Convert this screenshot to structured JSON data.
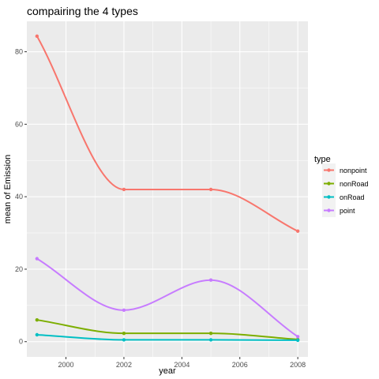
{
  "chart_data": {
    "type": "line",
    "title": "compairing the 4 types",
    "xlabel": "year",
    "ylabel": "mean of Emission",
    "x": [
      1999,
      2002,
      2005,
      2008
    ],
    "xlim": [
      1998.65,
      2008.35
    ],
    "ylim": [
      -4.2,
      88.4
    ],
    "xticks": [
      2000,
      2002,
      2004,
      2006,
      2008
    ],
    "yticks": [
      0,
      20,
      40,
      60,
      80
    ],
    "grid": true,
    "legend": {
      "title": "type",
      "position": "right"
    },
    "series": [
      {
        "name": "nonpoint",
        "color": "#F8766D",
        "values": [
          84.3,
          42.0,
          42.0,
          30.5
        ]
      },
      {
        "name": "nonRoad",
        "color": "#7CAE00",
        "values": [
          6.0,
          2.3,
          2.3,
          0.6
        ]
      },
      {
        "name": "onRoad",
        "color": "#00BFC4",
        "values": [
          1.9,
          0.5,
          0.5,
          0.4
        ]
      },
      {
        "name": "point",
        "color": "#C77CFF",
        "values": [
          22.9,
          8.7,
          17.0,
          1.4
        ]
      }
    ]
  }
}
